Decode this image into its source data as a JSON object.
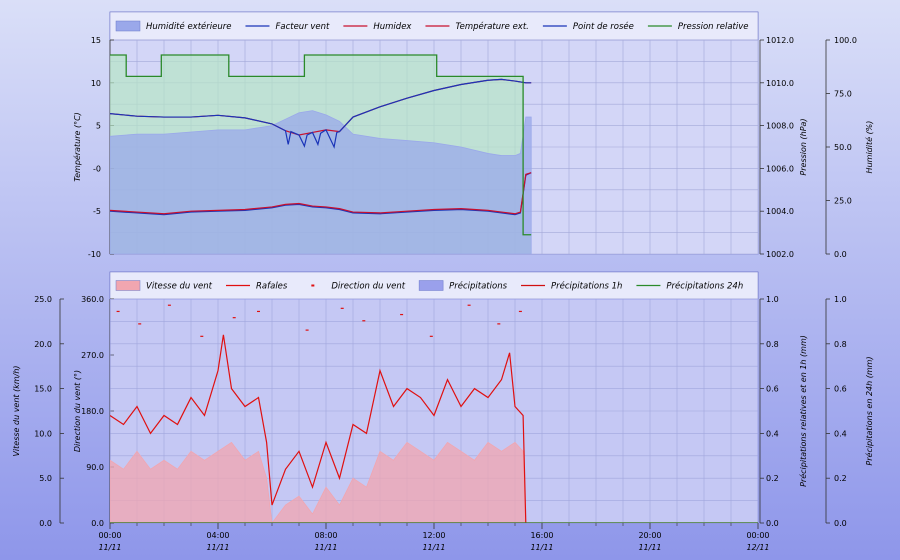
{
  "colors": {
    "background_top": "#dadff8",
    "background_bottom": "#8e96ea",
    "plot_bg": "#d3d6f7",
    "grid": "#a3a8d8",
    "humidity_fill": "#9aa8ea",
    "humidity_line": "#b0b8ee",
    "pressure_fill": "#b6e6c6",
    "pressure_line": "#2a8a2a",
    "wind_chill": "#1a34b8",
    "dew_point": "#1a34b8",
    "humidex": "#c8102e",
    "temperature": "#c8102e",
    "wind_speed_fill": "#f1a6b0",
    "wind_speed_line": "#f08090",
    "gusts": "#e01010",
    "direction": "#e01010",
    "rain_fill": "#9aa0ec",
    "rain_1h": "#d01010",
    "rain_24h": "#2a8a2a"
  },
  "x_ticks": [
    {
      "time": "00:00",
      "date": "11/11"
    },
    {
      "time": "04:00",
      "date": "11/11"
    },
    {
      "time": "08:00",
      "date": "11/11"
    },
    {
      "time": "12:00",
      "date": "11/11"
    },
    {
      "time": "16:00",
      "date": "11/11"
    },
    {
      "time": "20:00",
      "date": "11/11"
    },
    {
      "time": "00:00",
      "date": "12/11"
    }
  ],
  "chart_data": [
    {
      "type": "line",
      "x_unit": "hours since 00:00 11/11",
      "xlim": [
        0,
        24
      ],
      "legend": {
        "placement": "top",
        "items": [
          {
            "label": "Humidité extérieure",
            "kind": "area",
            "color": "#9aa8ea"
          },
          {
            "label": "Facteur vent",
            "kind": "line",
            "color": "#1a34b8"
          },
          {
            "label": "Humidex",
            "kind": "line",
            "color": "#c8102e"
          },
          {
            "label": "Température ext.",
            "kind": "line",
            "color": "#c8102e"
          },
          {
            "label": "Point de rosée",
            "kind": "line",
            "color": "#1a34b8"
          },
          {
            "label": "Pression relative",
            "kind": "line",
            "color": "#2a8a2a"
          }
        ]
      },
      "axes": {
        "left": {
          "label": "Température (°C)",
          "lim": [
            -10,
            15
          ],
          "ticks": [
            "15",
            "10",
            "5",
            "-0",
            "-5",
            "-10"
          ],
          "tick_values": [
            15,
            10,
            5,
            0,
            -5,
            -10
          ]
        },
        "right1": {
          "label": "Pression (hPa)",
          "lim": [
            1002,
            1012
          ],
          "ticks": [
            "1012.0",
            "1010.0",
            "1008.0",
            "1006.0",
            "1004.0",
            "1002.0"
          ],
          "tick_values": [
            1012,
            1010,
            1008,
            1006,
            1004,
            1002
          ]
        },
        "right2": {
          "label": "Humidité (%)",
          "lim": [
            0,
            100
          ],
          "ticks": [
            "100.0",
            "75.0",
            "50.0",
            "25.0",
            "0.0"
          ],
          "tick_values": [
            100,
            75,
            50,
            25,
            0
          ]
        }
      },
      "series": [
        {
          "name": "Humidité extérieure",
          "axis": "right2",
          "kind": "area",
          "x": [
            0,
            1,
            2,
            3,
            4,
            5,
            6,
            6.5,
            7,
            7.5,
            8,
            8.5,
            9,
            10,
            11,
            12,
            13,
            14,
            14.5,
            15,
            15.2,
            15.4,
            15.6
          ],
          "y": [
            55,
            56,
            56,
            57,
            58,
            58,
            60,
            63,
            66,
            67,
            65,
            62,
            56,
            54,
            53,
            52,
            50,
            47,
            46,
            46,
            47,
            64,
            64
          ]
        },
        {
          "name": "Facteur vent",
          "axis": "left",
          "kind": "line",
          "x": [
            0,
            1,
            2,
            3,
            4,
            5,
            6,
            6.5,
            7,
            7.5,
            8,
            8.5,
            9,
            10,
            11,
            12,
            13,
            14,
            14.5,
            15,
            15.2,
            15.4,
            15.6
          ],
          "y": [
            -5,
            -5.2,
            -5.4,
            -5.1,
            -5,
            -4.9,
            -4.6,
            -4.3,
            -4.2,
            -4.5,
            -4.6,
            -4.8,
            -5.2,
            -5.3,
            -5.1,
            -4.9,
            -4.8,
            -5,
            -5.2,
            -5.4,
            -5.2,
            -0.8,
            -0.5
          ]
        },
        {
          "name": "Point de rosée",
          "axis": "left",
          "kind": "line",
          "x": [
            0,
            1,
            2,
            3,
            4,
            5,
            6,
            6.5,
            7,
            7.5,
            8,
            8.5,
            9,
            10,
            11,
            12,
            13,
            14,
            14.5,
            15,
            15.2,
            15.4,
            15.6
          ],
          "y": [
            -4.9,
            -5.1,
            -5.3,
            -5,
            -4.9,
            -4.8,
            -4.5,
            -4.2,
            -4.1,
            -4.4,
            -4.5,
            -4.7,
            -5.1,
            -5.2,
            -5,
            -4.8,
            -4.7,
            -4.9,
            -5.1,
            -5.3,
            -5.1,
            -0.7,
            -0.5
          ]
        },
        {
          "name": "Humidex",
          "axis": "left",
          "kind": "line",
          "x": [
            0,
            1,
            2,
            3,
            4,
            5,
            6,
            6.5,
            7,
            7.5,
            8,
            8.5,
            9,
            10,
            11,
            12,
            13,
            14,
            14.5,
            15,
            15.2,
            15.4,
            15.6
          ],
          "y": [
            6.4,
            6.1,
            6,
            6,
            6.2,
            5.9,
            5.2,
            4.4,
            3.9,
            4.2,
            4.5,
            4.3,
            6,
            7.2,
            8.2,
            9.1,
            9.8,
            10.3,
            10.4,
            10.2,
            10.1,
            10,
            10
          ]
        },
        {
          "name": "Température ext.",
          "axis": "left",
          "kind": "line",
          "x": [
            0,
            1,
            2,
            3,
            4,
            5,
            6,
            6.5,
            6.6,
            6.7,
            7,
            7.2,
            7.3,
            7.5,
            7.7,
            7.8,
            8,
            8.3,
            8.4,
            8.5,
            9,
            10,
            11,
            12,
            13,
            14,
            14.5,
            15,
            15.2,
            15.4,
            15.6
          ],
          "y": [
            6.4,
            6.1,
            6,
            6,
            6.2,
            5.9,
            5.2,
            4.4,
            2.8,
            4.3,
            3.9,
            2.6,
            3.9,
            4.2,
            2.8,
            4.1,
            4.5,
            2.5,
            4.2,
            4.3,
            6,
            7.2,
            8.2,
            9.1,
            9.8,
            10.3,
            10.4,
            10.2,
            10.1,
            10,
            10
          ]
        },
        {
          "name": "Pression relative",
          "axis": "right1",
          "kind": "step",
          "x": [
            0,
            0.6,
            1.9,
            4.4,
            7.2,
            12.1,
            15.2,
            15.3,
            15.6
          ],
          "y": [
            1011.3,
            1010.3,
            1011.3,
            1010.3,
            1011.3,
            1010.3,
            1010.3,
            1002.9,
            1002.9
          ]
        }
      ]
    },
    {
      "type": "line",
      "x_unit": "hours since 00:00 11/11",
      "xlim": [
        0,
        24
      ],
      "legend": {
        "placement": "top",
        "items": [
          {
            "label": "Vitesse du vent",
            "kind": "area",
            "color": "#f1a6b0"
          },
          {
            "label": "Rafales",
            "kind": "line",
            "color": "#e01010"
          },
          {
            "label": "Direction du vent",
            "kind": "dots",
            "color": "#e01010"
          },
          {
            "label": "Précipitations",
            "kind": "area",
            "color": "#9aa0ec"
          },
          {
            "label": "Précipitations 1h",
            "kind": "line",
            "color": "#d01010"
          },
          {
            "label": "Précipitations 24h",
            "kind": "line",
            "color": "#2a8a2a"
          }
        ]
      },
      "axes": {
        "left_outer": {
          "label": "Vitesse du vent (km/h)",
          "lim": [
            0,
            25
          ],
          "ticks": [
            "25.0",
            "20.0",
            "15.0",
            "10.0",
            "5.0",
            "0.0"
          ],
          "tick_values": [
            25,
            20,
            15,
            10,
            5,
            0
          ]
        },
        "left_inner": {
          "label": "Direction du vent (°)",
          "lim": [
            0,
            360
          ],
          "ticks": [
            "360.0",
            "270.0",
            "180.0",
            "90.0",
            "0.0"
          ],
          "tick_values": [
            360,
            270,
            180,
            90,
            0
          ]
        },
        "right1": {
          "label": "Précipitations relatives et en 1h (mm)",
          "lim": [
            0,
            1
          ],
          "ticks": [
            "1.0",
            "0.8",
            "0.6",
            "0.4",
            "0.2",
            "0.0"
          ],
          "tick_values": [
            1,
            0.8,
            0.6,
            0.4,
            0.2,
            0
          ]
        },
        "right2": {
          "label": "Précipitations en 24h (mm)",
          "lim": [
            0,
            1
          ],
          "ticks": [
            "1.0",
            "0.8",
            "0.6",
            "0.4",
            "0.2",
            "0.0"
          ],
          "tick_values": [
            1,
            0.8,
            0.6,
            0.4,
            0.2,
            0
          ]
        }
      },
      "series": [
        {
          "name": "Vitesse du vent",
          "axis": "left_outer",
          "kind": "area",
          "x": [
            0,
            0.5,
            1,
            1.5,
            2,
            2.5,
            3,
            3.5,
            4,
            4.5,
            5,
            5.5,
            5.8,
            6,
            6.5,
            7,
            7.5,
            8,
            8.5,
            9,
            9.5,
            10,
            10.5,
            11,
            11.5,
            12,
            12.5,
            13,
            13.5,
            14,
            14.5,
            15,
            15.3,
            15.4
          ],
          "y": [
            7,
            6,
            8,
            6,
            7,
            6,
            8,
            7,
            8,
            9,
            7,
            8,
            5,
            0,
            2,
            3,
            1,
            4,
            2,
            5,
            4,
            8,
            7,
            9,
            8,
            7,
            9,
            8,
            7,
            9,
            8,
            9,
            8,
            0
          ]
        },
        {
          "name": "Rafales",
          "axis": "left_outer",
          "kind": "line",
          "x": [
            0,
            0.5,
            1,
            1.5,
            2,
            2.5,
            3,
            3.5,
            4,
            4.2,
            4.5,
            5,
            5.5,
            5.8,
            6,
            6.5,
            7,
            7.5,
            8,
            8.5,
            9,
            9.5,
            10,
            10.5,
            11,
            11.5,
            12,
            12.5,
            13,
            13.5,
            14,
            14.5,
            14.8,
            15,
            15.3,
            15.4
          ],
          "y": [
            12,
            11,
            13,
            10,
            12,
            11,
            14,
            12,
            17,
            21,
            15,
            13,
            14,
            9,
            2,
            6,
            8,
            4,
            9,
            5,
            11,
            10,
            17,
            13,
            15,
            14,
            12,
            16,
            13,
            15,
            14,
            16,
            19,
            13,
            12,
            0
          ]
        },
        {
          "name": "Direction du vent",
          "axis": "left_inner",
          "kind": "dots",
          "x": [
            0.3,
            1.1,
            2.2,
            3.4,
            4.6,
            5.5,
            7.3,
            8.6,
            9.4,
            10.8,
            11.9,
            13.3,
            14.4,
            15.2
          ],
          "y": [
            340,
            320,
            350,
            300,
            330,
            340,
            310,
            345,
            325,
            335,
            300,
            350,
            320,
            340
          ]
        },
        {
          "name": "Précipitations",
          "axis": "right1",
          "kind": "area",
          "x": [
            0,
            24
          ],
          "y": [
            1,
            1
          ]
        },
        {
          "name": "Précipitations 1h",
          "axis": "right1",
          "kind": "line",
          "x": [
            0,
            24
          ],
          "y": [
            0,
            0
          ]
        },
        {
          "name": "Précipitations 24h",
          "axis": "right2",
          "kind": "line",
          "x": [
            0,
            24
          ],
          "y": [
            0,
            0
          ]
        }
      ]
    }
  ]
}
